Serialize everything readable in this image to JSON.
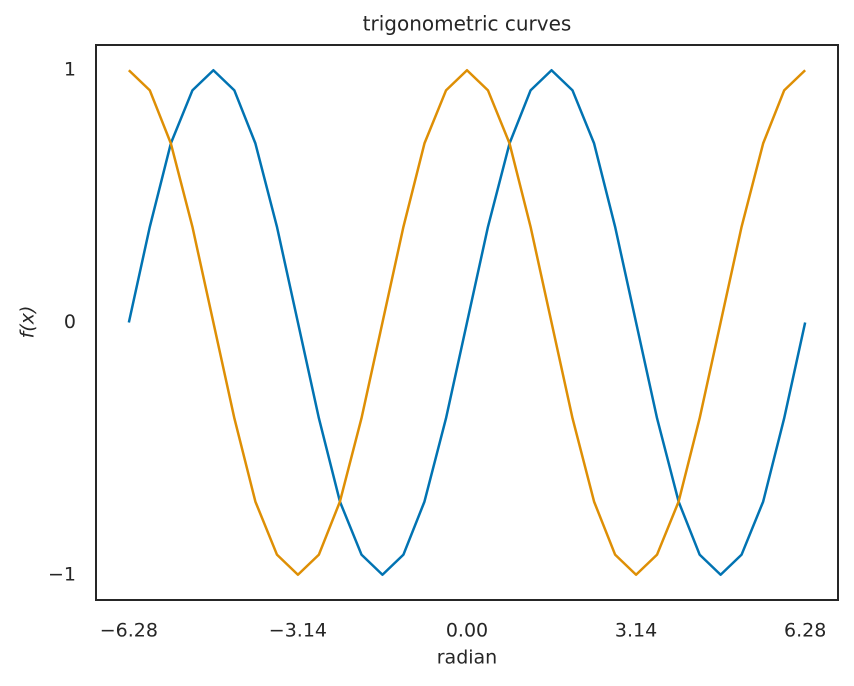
{
  "chart_data": {
    "type": "line",
    "title": "trigonometric curves",
    "xlabel": "radian",
    "ylabel": "f(x)",
    "x": [
      -6.28,
      -5.89,
      -5.5,
      -5.1,
      -4.71,
      -4.32,
      -3.93,
      -3.53,
      -3.14,
      -2.75,
      -2.36,
      -1.96,
      -1.57,
      -1.18,
      -0.79,
      -0.39,
      0,
      0.39,
      0.79,
      1.18,
      1.57,
      1.96,
      2.36,
      2.75,
      3.14,
      3.53,
      3.93,
      4.32,
      4.71,
      5.1,
      5.5,
      5.89,
      6.28
    ],
    "series": [
      {
        "color": "#0173b2",
        "values": [
          0,
          0.38,
          0.71,
          0.92,
          1,
          0.92,
          0.71,
          0.38,
          0,
          -0.38,
          -0.71,
          -0.92,
          -1,
          -0.92,
          -0.71,
          -0.38,
          0,
          0.38,
          0.71,
          0.92,
          1,
          0.92,
          0.71,
          0.38,
          0,
          -0.38,
          -0.71,
          -0.92,
          -1,
          -0.92,
          -0.71,
          -0.38,
          0
        ]
      },
      {
        "color": "#de8f05",
        "values": [
          1,
          0.92,
          0.71,
          0.38,
          0,
          -0.38,
          -0.71,
          -0.92,
          -1,
          -0.92,
          -0.71,
          -0.38,
          0,
          0.38,
          0.71,
          0.92,
          1,
          0.92,
          0.71,
          0.38,
          0,
          -0.38,
          -0.71,
          -0.92,
          -1,
          -0.92,
          -0.71,
          -0.38,
          0,
          0.38,
          0.71,
          0.92,
          1
        ]
      }
    ],
    "xlim": [
      -6.89,
      6.89
    ],
    "ylim": [
      -1.1,
      1.1
    ],
    "xticks": [
      {
        "value": -6.28,
        "label": "−6.28"
      },
      {
        "value": -3.14,
        "label": "−3.14"
      },
      {
        "value": 0,
        "label": "0.00"
      },
      3.14,
      6.28
    ],
    "yticks": [
      {
        "value": -1,
        "label": "−1"
      },
      0,
      1
    ],
    "grid": false
  }
}
